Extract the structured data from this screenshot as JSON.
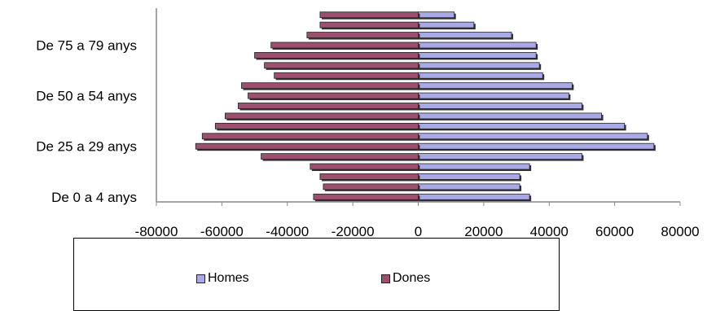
{
  "chart_data": {
    "type": "bar",
    "orientation": "horizontal",
    "categories": [
      "De 0 a 4 anys",
      "",
      "",
      "",
      "",
      "De 25 a 29 anys",
      "",
      "",
      "",
      "",
      "De 50 a 54 anys",
      "",
      "",
      "",
      "",
      "De 75 a 79 anys",
      "",
      "",
      ""
    ],
    "series": [
      {
        "name": "Homes",
        "color": "#a9a9e6",
        "values": [
          34000,
          31000,
          31000,
          34000,
          50000,
          72000,
          70000,
          63000,
          56000,
          50000,
          46000,
          47000,
          38000,
          37000,
          36000,
          36000,
          28500,
          17000,
          11000
        ]
      },
      {
        "name": "Dones",
        "color": "#9c4f6f",
        "values": [
          -32000,
          -29000,
          -30000,
          -33000,
          -48000,
          -68000,
          -66000,
          -62000,
          -59000,
          -55000,
          -52000,
          -54000,
          -44000,
          -47000,
          -50000,
          -45000,
          -34000,
          -30000,
          -30000
        ]
      }
    ],
    "x_ticks": [
      "-80000",
      "-60000",
      "-40000",
      "-20000",
      "0",
      "20000",
      "40000",
      "60000",
      "80000"
    ],
    "xlim": [
      -80000,
      80000
    ],
    "legend_position": "bottom"
  }
}
